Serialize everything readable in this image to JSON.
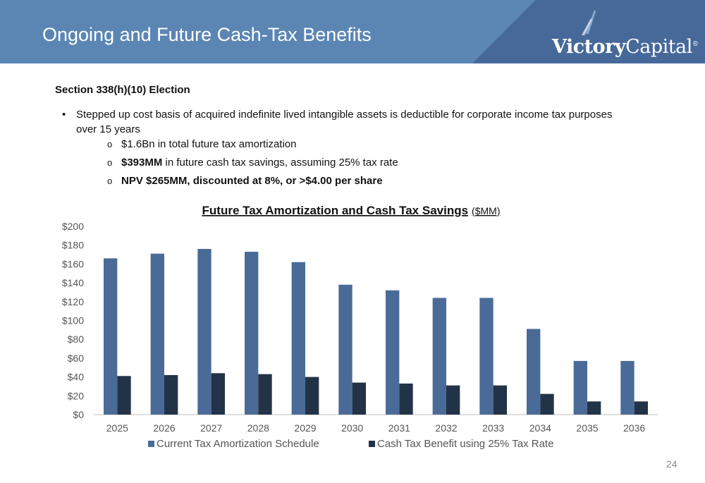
{
  "header": {
    "title": "Ongoing and Future Cash-Tax Benefits",
    "logo_text_bold": "Victory",
    "logo_text_light": "Capital",
    "logo_mark": "®",
    "colors": {
      "band": "#5b86b4",
      "band_dark": "#47699a",
      "logo_stripe": "#89a9ce"
    }
  },
  "content": {
    "heading": "Section 338(h)(10) Election",
    "bullet_symbol": "•",
    "bullet_text": "Stepped up cost basis of acquired indefinite lived intangible assets is deductible for corporate income tax purposes over 15 years",
    "sub_symbol": "o",
    "sub_items": [
      {
        "bold": "",
        "text": "$1.6Bn in total future tax amortization"
      },
      {
        "bold": "$393MM",
        "text": " in future cash tax savings, assuming 25% tax rate"
      },
      {
        "bold": "NPV $265MM, discounted at 8%, or >$4.00 per share",
        "text": ""
      }
    ]
  },
  "chart_data": {
    "type": "bar",
    "title": "Future Tax Amortization and Cash Tax Savings",
    "title_unit": "($MM)",
    "categories": [
      "2025",
      "2026",
      "2027",
      "2028",
      "2029",
      "2030",
      "2031",
      "2032",
      "2033",
      "2034",
      "2035",
      "2036"
    ],
    "series": [
      {
        "name": "Current Tax Amortization Schedule",
        "color": "#4a6b97",
        "values": [
          166,
          171,
          176,
          173,
          162,
          138,
          132,
          124,
          124,
          91,
          57,
          57
        ]
      },
      {
        "name": "Cash Tax Benefit using 25% Tax Rate",
        "color": "#233347",
        "values": [
          41,
          42,
          44,
          43,
          40,
          34,
          33,
          31,
          31,
          22,
          14,
          14
        ]
      }
    ],
    "ylim": [
      0,
      200
    ],
    "yticks": [
      0,
      20,
      40,
      60,
      80,
      100,
      120,
      140,
      160,
      180,
      200
    ],
    "ytick_labels": [
      "$0",
      "$20",
      "$40",
      "$60",
      "$80",
      "$100",
      "$120",
      "$140",
      "$160",
      "$180",
      "$200"
    ],
    "grid": false,
    "legend": "bottom"
  },
  "footer": {
    "page_number": "24"
  }
}
